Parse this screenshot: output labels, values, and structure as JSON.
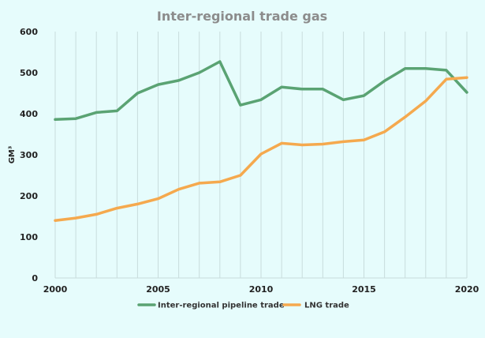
{
  "chart_data": {
    "type": "line",
    "title": "Inter-regional trade gas",
    "xlabel": "",
    "ylabel": "GM³",
    "x": [
      2000,
      2001,
      2002,
      2003,
      2004,
      2005,
      2006,
      2007,
      2008,
      2009,
      2010,
      2011,
      2012,
      2013,
      2014,
      2015,
      2016,
      2017,
      2018,
      2019,
      2020
    ],
    "xlim": [
      2000,
      2020
    ],
    "ylim": [
      0,
      600
    ],
    "x_ticks": [
      "2000",
      "2005",
      "2010",
      "2015",
      "2020"
    ],
    "y_ticks": [
      "0",
      "100",
      "200",
      "300",
      "400",
      "500",
      "600"
    ],
    "grid": "vertical",
    "legend_position": "bottom",
    "series": [
      {
        "name": "Inter-regional pipeline trade",
        "color": "#5aa373",
        "values": [
          386,
          388,
          403,
          407,
          450,
          471,
          481,
          500,
          527,
          421,
          434,
          465,
          460,
          460,
          434,
          444,
          480,
          510,
          510,
          506,
          452
        ]
      },
      {
        "name": "LNG trade",
        "color": "#f5a94e",
        "values": [
          140,
          146,
          155,
          170,
          180,
          193,
          216,
          231,
          234,
          250,
          302,
          328,
          324,
          326,
          332,
          336,
          356,
          392,
          431,
          484,
          488
        ]
      }
    ]
  }
}
